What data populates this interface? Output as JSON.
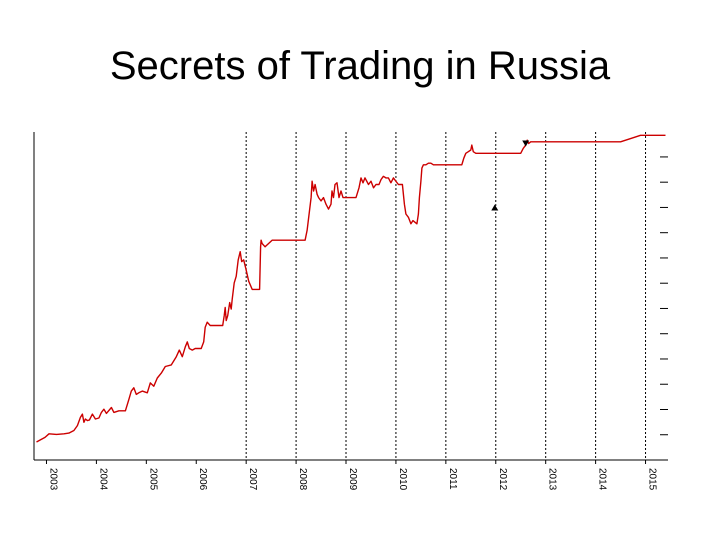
{
  "slide": {
    "title": "Secrets of Trading in Russia"
  },
  "chart_data": {
    "type": "line",
    "title": "",
    "xlabel": "",
    "ylabel": "",
    "xlim": [
      2002.75,
      2015.45
    ],
    "ylim": [
      0,
      100
    ],
    "x_ticks": [
      "2003",
      "2004",
      "2005",
      "2006",
      "2007",
      "2008",
      "2009",
      "2010",
      "2011",
      "2012",
      "2013",
      "2014",
      "2015"
    ],
    "grid": {
      "vertical_dotted_from": "2007",
      "horizontal": false
    },
    "series": [
      {
        "name": "",
        "color": "#cc0000",
        "points": [
          [
            2002.8,
            5.5
          ],
          [
            2002.9,
            6.3
          ],
          [
            2002.97,
            6.9
          ],
          [
            2003.05,
            8.0
          ],
          [
            2003.2,
            7.8
          ],
          [
            2003.35,
            8.0
          ],
          [
            2003.45,
            8.2
          ],
          [
            2003.55,
            9.0
          ],
          [
            2003.62,
            10.5
          ],
          [
            2003.68,
            13.0
          ],
          [
            2003.72,
            14.0
          ],
          [
            2003.75,
            11.5
          ],
          [
            2003.78,
            12.5
          ],
          [
            2003.82,
            12.0
          ],
          [
            2003.86,
            12.2
          ],
          [
            2003.92,
            14.0
          ],
          [
            2003.98,
            12.5
          ],
          [
            2004.05,
            12.8
          ],
          [
            2004.1,
            14.5
          ],
          [
            2004.15,
            15.5
          ],
          [
            2004.2,
            14.2
          ],
          [
            2004.3,
            16.0
          ],
          [
            2004.35,
            14.5
          ],
          [
            2004.45,
            15.0
          ],
          [
            2004.58,
            15.0
          ],
          [
            2004.65,
            18.5
          ],
          [
            2004.7,
            21.0
          ],
          [
            2004.75,
            22.0
          ],
          [
            2004.8,
            20.0
          ],
          [
            2004.85,
            20.5
          ],
          [
            2004.92,
            21.0
          ],
          [
            2005.02,
            20.5
          ],
          [
            2005.08,
            23.5
          ],
          [
            2005.15,
            22.5
          ],
          [
            2005.22,
            25.0
          ],
          [
            2005.3,
            26.5
          ],
          [
            2005.38,
            28.5
          ],
          [
            2005.5,
            29.0
          ],
          [
            2005.6,
            31.5
          ],
          [
            2005.66,
            33.5
          ],
          [
            2005.72,
            31.5
          ],
          [
            2005.78,
            34.5
          ],
          [
            2005.82,
            36.0
          ],
          [
            2005.86,
            34.0
          ],
          [
            2005.92,
            33.5
          ],
          [
            2005.98,
            34.0
          ],
          [
            2006.1,
            34.0
          ],
          [
            2006.15,
            36.0
          ],
          [
            2006.18,
            40.5
          ],
          [
            2006.22,
            42.0
          ],
          [
            2006.28,
            41.0
          ],
          [
            2006.4,
            41.0
          ],
          [
            2006.53,
            41.0
          ],
          [
            2006.56,
            44.0
          ],
          [
            2006.58,
            46.5
          ],
          [
            2006.6,
            42.5
          ],
          [
            2006.63,
            44.0
          ],
          [
            2006.67,
            48.0
          ],
          [
            2006.7,
            46.0
          ],
          [
            2006.72,
            49.0
          ],
          [
            2006.76,
            54.0
          ],
          [
            2006.8,
            56.0
          ],
          [
            2006.84,
            61.0
          ],
          [
            2006.88,
            63.5
          ],
          [
            2006.91,
            60.5
          ],
          [
            2006.95,
            61.0
          ],
          [
            2006.99,
            58.5
          ],
          [
            2007.05,
            54.5
          ],
          [
            2007.12,
            52.0
          ],
          [
            2007.2,
            52.0
          ],
          [
            2007.27,
            52.0
          ],
          [
            2007.29,
            65.0
          ],
          [
            2007.3,
            67.0
          ],
          [
            2007.32,
            66.0
          ],
          [
            2007.38,
            65.0
          ],
          [
            2007.45,
            66.0
          ],
          [
            2007.52,
            67.0
          ],
          [
            2007.6,
            67.0
          ],
          [
            2007.7,
            67.0
          ],
          [
            2007.85,
            67.0
          ],
          [
            2008.0,
            67.0
          ],
          [
            2008.18,
            67.0
          ],
          [
            2008.22,
            70.0
          ],
          [
            2008.26,
            75.0
          ],
          [
            2008.3,
            80.0
          ],
          [
            2008.32,
            85.0
          ],
          [
            2008.35,
            82.0
          ],
          [
            2008.38,
            84.0
          ],
          [
            2008.42,
            81.0
          ],
          [
            2008.45,
            80.0
          ],
          [
            2008.5,
            79.0
          ],
          [
            2008.55,
            80.0
          ],
          [
            2008.6,
            78.0
          ],
          [
            2008.65,
            76.5
          ],
          [
            2008.7,
            78.0
          ],
          [
            2008.72,
            82.0
          ],
          [
            2008.75,
            80.0
          ],
          [
            2008.78,
            84.0
          ],
          [
            2008.82,
            84.5
          ],
          [
            2008.86,
            80.0
          ],
          [
            2008.9,
            82.0
          ],
          [
            2008.94,
            80.0
          ],
          [
            2009.0,
            80.0
          ],
          [
            2009.1,
            80.0
          ],
          [
            2009.2,
            80.0
          ],
          [
            2009.26,
            83.0
          ],
          [
            2009.3,
            86.0
          ],
          [
            2009.34,
            84.5
          ],
          [
            2009.38,
            86.0
          ],
          [
            2009.45,
            84.0
          ],
          [
            2009.5,
            85.0
          ],
          [
            2009.55,
            83.0
          ],
          [
            2009.6,
            84.0
          ],
          [
            2009.66,
            84.0
          ],
          [
            2009.7,
            85.5
          ],
          [
            2009.75,
            86.5
          ],
          [
            2009.8,
            86.0
          ],
          [
            2009.85,
            86.0
          ],
          [
            2009.9,
            84.5
          ],
          [
            2009.95,
            86.0
          ],
          [
            2010.05,
            84.0
          ],
          [
            2010.13,
            84.0
          ],
          [
            2010.17,
            78.0
          ],
          [
            2010.2,
            75.0
          ],
          [
            2010.25,
            74.0
          ],
          [
            2010.3,
            72.0
          ],
          [
            2010.34,
            73.0
          ],
          [
            2010.38,
            72.5
          ],
          [
            2010.42,
            72.0
          ],
          [
            2010.45,
            75.0
          ],
          [
            2010.47,
            80.0
          ],
          [
            2010.5,
            85.0
          ],
          [
            2010.52,
            89.0
          ],
          [
            2010.55,
            90.0
          ],
          [
            2010.6,
            90.0
          ],
          [
            2010.65,
            90.5
          ],
          [
            2010.7,
            90.5
          ],
          [
            2010.75,
            90.0
          ],
          [
            2010.8,
            90.0
          ],
          [
            2010.9,
            90.0
          ],
          [
            2011.0,
            90.0
          ],
          [
            2011.1,
            90.0
          ],
          [
            2011.2,
            90.0
          ],
          [
            2011.32,
            90.0
          ],
          [
            2011.34,
            91.0
          ],
          [
            2011.36,
            92.0
          ],
          [
            2011.4,
            93.5
          ],
          [
            2011.45,
            94.0
          ],
          [
            2011.5,
            94.5
          ],
          [
            2011.52,
            96.0
          ],
          [
            2011.55,
            94.0
          ],
          [
            2011.6,
            93.5
          ],
          [
            2011.65,
            93.5
          ],
          [
            2011.7,
            93.5
          ],
          [
            2011.8,
            93.5
          ],
          [
            2011.9,
            93.5
          ],
          [
            2012.0,
            93.5
          ],
          [
            2012.1,
            93.5
          ],
          [
            2012.2,
            93.5
          ],
          [
            2012.3,
            93.5
          ],
          [
            2012.4,
            93.5
          ],
          [
            2012.5,
            93.5
          ],
          [
            2012.55,
            95.0
          ],
          [
            2012.6,
            96.0
          ],
          [
            2012.63,
            97.5
          ],
          [
            2012.66,
            96.5
          ],
          [
            2012.7,
            97.0
          ],
          [
            2012.8,
            97.0
          ],
          [
            2012.95,
            97.0
          ],
          [
            2013.1,
            97.0
          ],
          [
            2013.3,
            97.0
          ],
          [
            2013.5,
            97.0
          ],
          [
            2013.7,
            97.0
          ],
          [
            2013.9,
            97.0
          ],
          [
            2014.1,
            97.0
          ],
          [
            2014.3,
            97.0
          ],
          [
            2014.5,
            97.0
          ],
          [
            2014.6,
            97.5
          ],
          [
            2014.7,
            98.0
          ],
          [
            2014.8,
            98.5
          ],
          [
            2014.9,
            99.0
          ],
          [
            2015.0,
            99.0
          ],
          [
            2015.1,
            99.0
          ],
          [
            2015.2,
            99.0
          ],
          [
            2015.3,
            99.0
          ],
          [
            2015.4,
            99.0
          ]
        ]
      }
    ],
    "annotations": [
      {
        "symbol": "down-triangle",
        "x": 2012.6,
        "y": 96.5
      },
      {
        "symbol": "up-triangle",
        "x": 2011.98,
        "y": 77.0
      }
    ]
  }
}
